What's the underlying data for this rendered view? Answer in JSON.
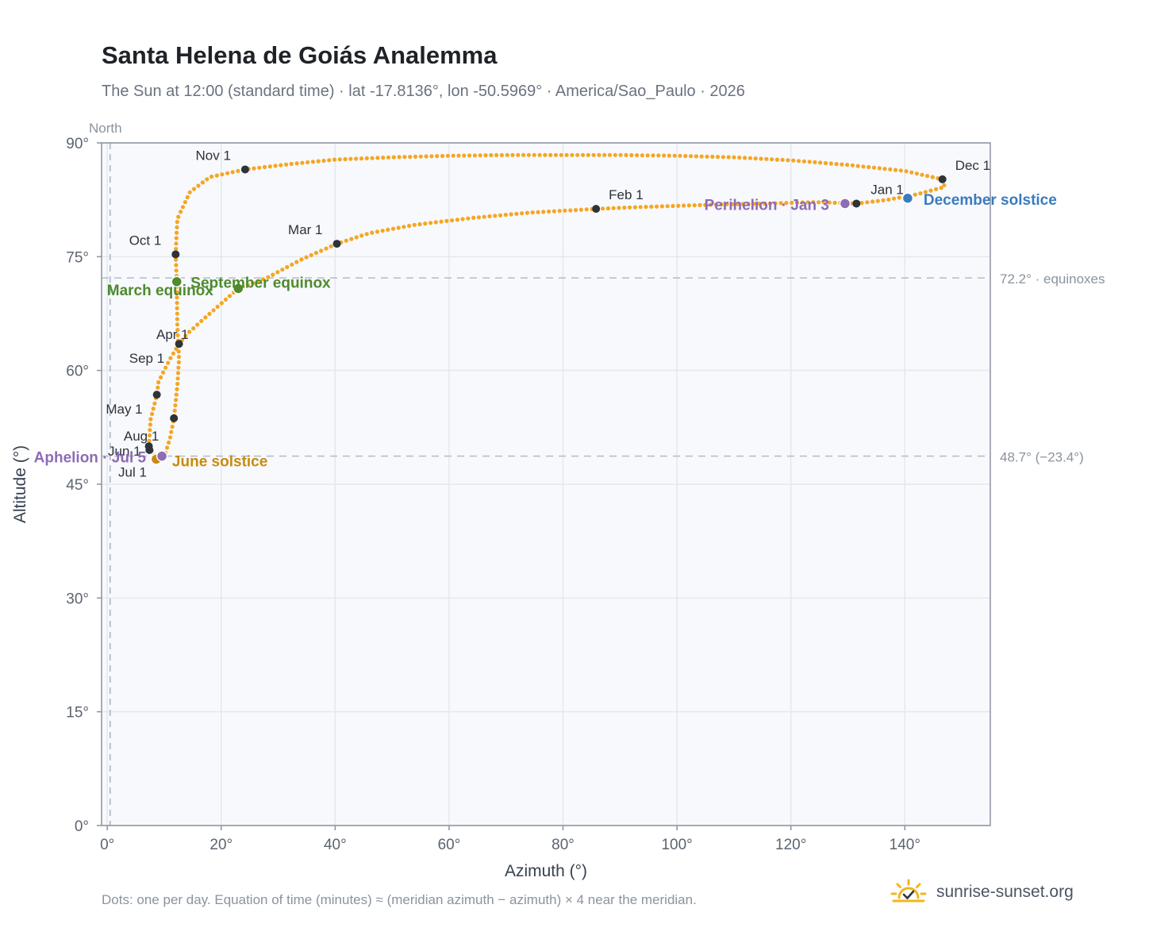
{
  "title": "Santa Helena de Goiás Analemma",
  "subtitle": "The Sun at 12:00 (standard time) · lat -17.8136°, lon -50.5969° · America/Sao_Paulo · 2026",
  "footnote": "Dots: one per day. Equation of time (minutes) ≈ (meridian azimuth − azimuth) × 4 near the meridian.",
  "brand": {
    "name": "sunrise-sunset.org",
    "icon": "sun-check-icon"
  },
  "colors": {
    "curve": "#f5a623",
    "month_marker": "#2d333b",
    "equinox": "#4e8a2e",
    "solstice_june": "#c98a0e",
    "solstice_december": "#3a7bbf",
    "apsis": "#8e6bb5",
    "axis": "#8a93a0",
    "plot_bg": "#f7f9fc"
  },
  "chart_data": {
    "type": "scatter",
    "xlabel": "Azimuth (°)",
    "ylabel": "Altitude (°)",
    "xlim": [
      -1,
      155
    ],
    "ylim": [
      0,
      90
    ],
    "x_ticks": [
      0,
      20,
      40,
      60,
      80,
      100,
      120,
      140
    ],
    "x_tick_labels": [
      "0°",
      "20°",
      "40°",
      "60°",
      "80°",
      "100°",
      "120°",
      "140°"
    ],
    "y_ticks": [
      0,
      15,
      30,
      45,
      60,
      75,
      90
    ],
    "y_tick_labels": [
      "0°",
      "15°",
      "30°",
      "45°",
      "60°",
      "75°",
      "90°"
    ],
    "grid": true,
    "meridian": {
      "x": 0.5,
      "label": "North"
    },
    "reference_lines": [
      {
        "y": 72.2,
        "label": "72.2° · equinoxes"
      },
      {
        "y": 48.7,
        "label": "48.7° (−23.4°)"
      }
    ],
    "daily_path": [
      [
        131.5,
        82.0
      ],
      [
        124,
        82.2
      ],
      [
        116,
        82.0
      ],
      [
        108,
        81.9
      ],
      [
        100,
        81.7
      ],
      [
        92,
        81.5
      ],
      [
        85.8,
        81.3
      ],
      [
        74,
        80.8
      ],
      [
        64,
        80.1
      ],
      [
        54,
        79.2
      ],
      [
        46,
        78.1
      ],
      [
        40.3,
        76.7
      ],
      [
        34,
        74.6
      ],
      [
        28,
        72.2
      ],
      [
        23,
        70.8
      ],
      [
        18,
        67.5
      ],
      [
        16.5,
        66.5
      ],
      [
        14,
        64.8
      ],
      [
        12.6,
        63.5
      ],
      [
        11,
        61.5
      ],
      [
        9,
        58.5
      ],
      [
        8.7,
        56.8
      ],
      [
        7.6,
        53.5
      ],
      [
        7.3,
        50.0
      ],
      [
        8.5,
        48.5
      ],
      [
        9.2,
        48.3
      ],
      [
        10,
        48.6
      ],
      [
        11,
        51
      ],
      [
        11.7,
        53.7
      ],
      [
        12.3,
        58
      ],
      [
        12.6,
        61.5
      ],
      [
        12.3,
        66
      ],
      [
        12.2,
        71.7
      ],
      [
        12.0,
        75.3
      ],
      [
        12.3,
        80
      ],
      [
        14.5,
        83.5
      ],
      [
        18,
        85.5
      ],
      [
        24.2,
        86.5
      ],
      [
        32,
        87.2
      ],
      [
        40,
        87.8
      ],
      [
        50,
        88.1
      ],
      [
        60,
        88.3
      ],
      [
        70,
        88.4
      ],
      [
        80,
        88.4
      ],
      [
        90,
        88.4
      ],
      [
        100,
        88.3
      ],
      [
        110,
        88.1
      ],
      [
        120,
        87.7
      ],
      [
        130,
        87.1
      ],
      [
        140,
        86.3
      ],
      [
        146.6,
        85.2
      ],
      [
        147,
        84.2
      ],
      [
        142,
        83.2
      ],
      [
        137,
        82.5
      ],
      [
        131.5,
        82.0
      ]
    ],
    "month_markers": [
      {
        "label": "Jan 1",
        "x": 131.5,
        "y": 82.0
      },
      {
        "label": "Feb 1",
        "x": 85.8,
        "y": 81.3
      },
      {
        "label": "Mar 1",
        "x": 40.3,
        "y": 76.7
      },
      {
        "label": "Apr 1",
        "x": 12.6,
        "y": 63.5
      },
      {
        "label": "May 1",
        "x": 8.7,
        "y": 56.8
      },
      {
        "label": "Jun 1",
        "x": 7.3,
        "y": 50.0
      },
      {
        "label": "Jul 1",
        "x": 8.6,
        "y": 48.3
      },
      {
        "label": "Aug 1",
        "x": 7.4,
        "y": 49.5
      },
      {
        "label": "Sep 1",
        "x": 11.7,
        "y": 53.7
      },
      {
        "label": "Oct 1",
        "x": 12.0,
        "y": 75.3
      },
      {
        "label": "Nov 1",
        "x": 24.2,
        "y": 86.5
      },
      {
        "label": "Dec 1",
        "x": 146.6,
        "y": 85.2
      }
    ],
    "events": [
      {
        "label": "March equinox",
        "x": 12.2,
        "y": 71.7,
        "color_key": "equinox"
      },
      {
        "label": "September equinox",
        "x": 23.0,
        "y": 70.8,
        "color_key": "equinox"
      },
      {
        "label": "June solstice",
        "x": 8.6,
        "y": 48.3,
        "color_key": "solstice_june"
      },
      {
        "label": "December solstice",
        "x": 140.5,
        "y": 82.7,
        "color_key": "solstice_december"
      },
      {
        "label": "Perihelion · Jan 3",
        "x": 129.5,
        "y": 82.0,
        "color_key": "apsis"
      },
      {
        "label": "Aphelion · Jul 5",
        "x": 9.6,
        "y": 48.7,
        "color_key": "apsis"
      }
    ]
  }
}
